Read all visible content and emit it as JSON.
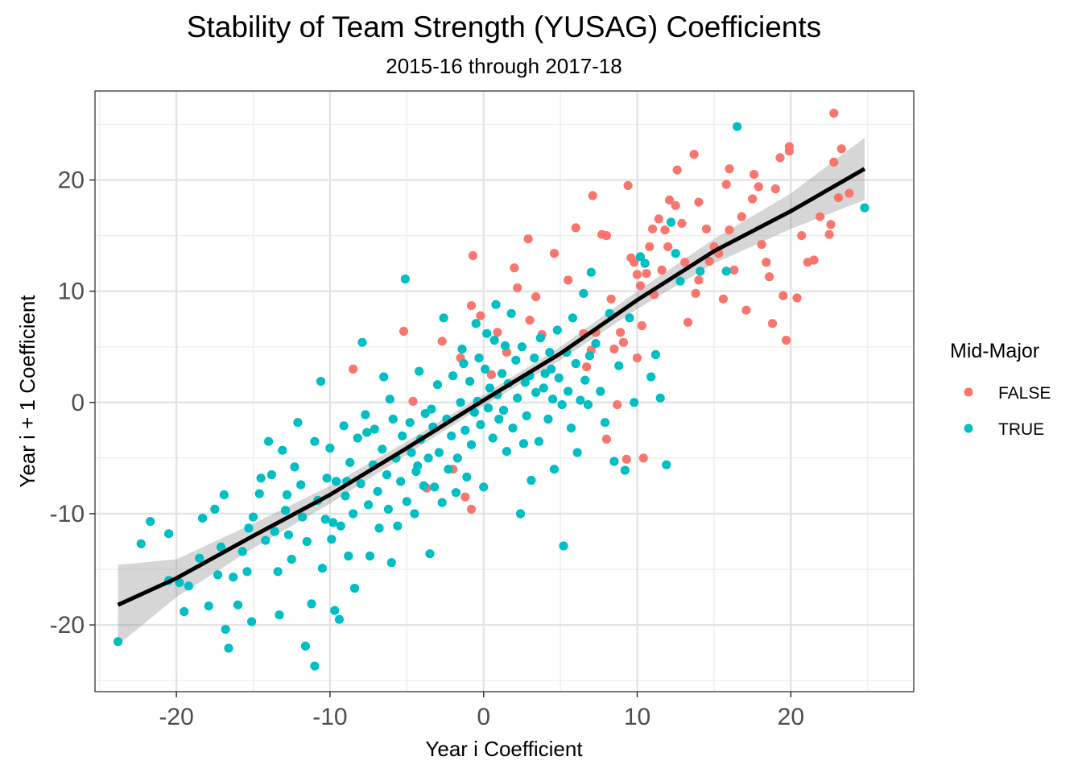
{
  "chart_data": {
    "type": "scatter",
    "title": "Stability of Team Strength (YUSAG) Coefficients",
    "subtitle": "2015-16 through 2017-18",
    "xlabel": "Year i Coefficient",
    "ylabel": "Year i + 1  Coefficient",
    "xlim": [
      -25.3,
      28.0
    ],
    "ylim": [
      -26.0,
      28.0
    ],
    "x_ticks": [
      -20,
      -10,
      0,
      10,
      20
    ],
    "y_ticks": [
      -20,
      -10,
      0,
      10,
      20
    ],
    "x_tick_labels": [
      "-20",
      "-10",
      "0",
      "10",
      "20"
    ],
    "y_tick_labels": [
      "-20",
      "-10",
      "0",
      "10",
      "20"
    ],
    "grid": true,
    "legend": {
      "title": "Mid-Major",
      "position": "right"
    },
    "series": [
      {
        "name": "FALSE",
        "color": "#F8766D",
        "points": [
          [
            -8.5,
            3.0
          ],
          [
            -5.2,
            6.4
          ],
          [
            -4.6,
            0.1
          ],
          [
            -3.7,
            -7.7
          ],
          [
            -2.7,
            5.5
          ],
          [
            -1.2,
            -8.5
          ],
          [
            -0.8,
            -9.6
          ],
          [
            -0.8,
            8.7
          ],
          [
            -0.7,
            13.2
          ],
          [
            -0.2,
            7.8
          ],
          [
            0.5,
            2.5
          ],
          [
            0.9,
            6.3
          ],
          [
            2.0,
            12.1
          ],
          [
            2.2,
            10.3
          ],
          [
            2.9,
            14.7
          ],
          [
            3.4,
            9.5
          ],
          [
            3.8,
            6.1
          ],
          [
            4.6,
            13.4
          ],
          [
            5.5,
            11.0
          ],
          [
            6.0,
            15.7
          ],
          [
            6.5,
            6.2
          ],
          [
            6.7,
            3.2
          ],
          [
            7.0,
            4.7
          ],
          [
            7.3,
            6.3
          ],
          [
            7.7,
            15.1
          ],
          [
            8.0,
            15.0
          ],
          [
            8.3,
            9.3
          ],
          [
            8.5,
            4.8
          ],
          [
            8.7,
            -0.2
          ],
          [
            8.9,
            6.3
          ],
          [
            9.1,
            5.4
          ],
          [
            9.3,
            -5.1
          ],
          [
            9.4,
            19.5
          ],
          [
            9.6,
            13.0
          ],
          [
            9.8,
            12.6
          ],
          [
            10.0,
            11.5
          ],
          [
            10.2,
            10.5
          ],
          [
            10.3,
            6.9
          ],
          [
            10.4,
            -5.0
          ],
          [
            10.6,
            11.6
          ],
          [
            10.8,
            14.0
          ],
          [
            11.0,
            15.6
          ],
          [
            11.1,
            9.7
          ],
          [
            11.4,
            16.5
          ],
          [
            11.6,
            11.9
          ],
          [
            11.8,
            15.5
          ],
          [
            12.1,
            18.2
          ],
          [
            12.5,
            17.7
          ],
          [
            12.6,
            20.9
          ],
          [
            12.9,
            16.1
          ],
          [
            13.1,
            12.6
          ],
          [
            13.3,
            7.2
          ],
          [
            13.7,
            22.3
          ],
          [
            13.8,
            9.8
          ],
          [
            14.0,
            11.0
          ],
          [
            14.5,
            15.6
          ],
          [
            14.7,
            12.7
          ],
          [
            15.0,
            14.0
          ],
          [
            15.3,
            13.4
          ],
          [
            15.6,
            9.3
          ],
          [
            15.8,
            19.6
          ],
          [
            16.0,
            15.5
          ],
          [
            16.3,
            11.9
          ],
          [
            16.8,
            16.7
          ],
          [
            17.1,
            8.3
          ],
          [
            17.5,
            18.3
          ],
          [
            17.9,
            19.4
          ],
          [
            18.1,
            14.2
          ],
          [
            18.4,
            12.6
          ],
          [
            18.6,
            11.3
          ],
          [
            18.8,
            7.1
          ],
          [
            19.0,
            19.2
          ],
          [
            19.3,
            22.0
          ],
          [
            19.5,
            9.6
          ],
          [
            19.7,
            5.6
          ],
          [
            19.9,
            22.6
          ],
          [
            20.4,
            9.4
          ],
          [
            20.7,
            15.0
          ],
          [
            21.1,
            12.6
          ],
          [
            21.5,
            12.8
          ],
          [
            21.9,
            16.7
          ],
          [
            22.5,
            15.1
          ],
          [
            22.6,
            16.0
          ],
          [
            22.8,
            21.6
          ],
          [
            22.8,
            26.0
          ],
          [
            23.1,
            18.4
          ],
          [
            23.3,
            22.8
          ],
          [
            23.8,
            18.8
          ],
          [
            1.5,
            4.5
          ],
          [
            3.0,
            7.4
          ],
          [
            -1.5,
            4.0
          ],
          [
            -2.0,
            -6.0
          ],
          [
            8.0,
            -3.3
          ],
          [
            10.0,
            4.0
          ],
          [
            12.0,
            14.0
          ],
          [
            14.0,
            18.0
          ],
          [
            16.0,
            21.0
          ],
          [
            17.6,
            20.5
          ],
          [
            19.9,
            23.0
          ],
          [
            7.1,
            18.6
          ]
        ]
      },
      {
        "name": "TRUE",
        "color": "#00BFC4",
        "points": [
          [
            -23.8,
            -21.5
          ],
          [
            -22.3,
            -12.7
          ],
          [
            -21.7,
            -10.7
          ],
          [
            -20.5,
            -11.8
          ],
          [
            -20.5,
            -16.0
          ],
          [
            -19.8,
            -16.2
          ],
          [
            -19.5,
            -18.8
          ],
          [
            -19.2,
            -16.5
          ],
          [
            -18.5,
            -14.0
          ],
          [
            -18.3,
            -10.4
          ],
          [
            -17.9,
            -18.3
          ],
          [
            -17.5,
            -9.6
          ],
          [
            -17.3,
            -15.5
          ],
          [
            -17.1,
            -13.0
          ],
          [
            -16.9,
            -8.3
          ],
          [
            -16.8,
            -20.4
          ],
          [
            -16.6,
            -22.1
          ],
          [
            -16.3,
            -15.7
          ],
          [
            -16.0,
            -18.2
          ],
          [
            -15.7,
            -13.4
          ],
          [
            -15.4,
            -15.2
          ],
          [
            -15.1,
            -19.7
          ],
          [
            -15.0,
            -10.3
          ],
          [
            -14.6,
            -8.2
          ],
          [
            -14.2,
            -12.4
          ],
          [
            -14.0,
            -3.5
          ],
          [
            -13.8,
            -6.5
          ],
          [
            -13.6,
            -11.6
          ],
          [
            -13.4,
            -15.2
          ],
          [
            -13.3,
            -19.1
          ],
          [
            -13.1,
            -4.3
          ],
          [
            -12.9,
            -9.7
          ],
          [
            -12.7,
            -11.9
          ],
          [
            -12.5,
            -14.1
          ],
          [
            -12.3,
            -5.8
          ],
          [
            -12.1,
            -1.8
          ],
          [
            -11.9,
            -7.4
          ],
          [
            -11.8,
            -10.3
          ],
          [
            -11.6,
            -21.9
          ],
          [
            -11.5,
            -12.5
          ],
          [
            -11.2,
            -18.1
          ],
          [
            -11.0,
            -23.7
          ],
          [
            -10.8,
            -8.8
          ],
          [
            -10.6,
            1.9
          ],
          [
            -10.5,
            -14.9
          ],
          [
            -10.3,
            -10.5
          ],
          [
            -10.2,
            -6.8
          ],
          [
            -10.0,
            -4.1
          ],
          [
            -9.9,
            -12.3
          ],
          [
            -9.7,
            -18.7
          ],
          [
            -9.6,
            -7.1
          ],
          [
            -9.4,
            -19.5
          ],
          [
            -9.3,
            -11.1
          ],
          [
            -9.1,
            -2.1
          ],
          [
            -9.0,
            -8.4
          ],
          [
            -8.8,
            -13.8
          ],
          [
            -8.7,
            -5.4
          ],
          [
            -8.5,
            -10.0
          ],
          [
            -8.4,
            -16.7
          ],
          [
            -8.2,
            -3.2
          ],
          [
            -8.0,
            -7.3
          ],
          [
            -7.9,
            5.4
          ],
          [
            -7.7,
            -1.1
          ],
          [
            -7.5,
            -9.2
          ],
          [
            -7.4,
            -13.8
          ],
          [
            -7.2,
            -5.6
          ],
          [
            -7.1,
            -2.4
          ],
          [
            -6.9,
            -8.0
          ],
          [
            -6.8,
            -11.3
          ],
          [
            -6.6,
            -4.2
          ],
          [
            -6.5,
            2.3
          ],
          [
            -6.3,
            -6.5
          ],
          [
            -6.2,
            -9.6
          ],
          [
            -6.0,
            -14.4
          ],
          [
            -5.9,
            -1.5
          ],
          [
            -5.7,
            -5.0
          ],
          [
            -5.6,
            -11.1
          ],
          [
            -5.4,
            -7.1
          ],
          [
            -5.3,
            -3.0
          ],
          [
            -5.1,
            11.1
          ],
          [
            -5.0,
            -8.9
          ],
          [
            -4.8,
            -1.8
          ],
          [
            -4.7,
            -4.5
          ],
          [
            -4.5,
            -10.0
          ],
          [
            -4.4,
            -6.2
          ],
          [
            -4.2,
            2.8
          ],
          [
            -4.1,
            -3.3
          ],
          [
            -3.9,
            -7.5
          ],
          [
            -3.8,
            -1.0
          ],
          [
            -3.6,
            -5.0
          ],
          [
            -3.5,
            -13.6
          ],
          [
            -3.3,
            -2.2
          ],
          [
            -3.2,
            -7.6
          ],
          [
            -3.0,
            1.6
          ],
          [
            -2.9,
            -4.5
          ],
          [
            -2.7,
            -9.0
          ],
          [
            -2.6,
            7.6
          ],
          [
            -2.4,
            -1.5
          ],
          [
            -2.3,
            -6.0
          ],
          [
            -2.1,
            -3.0
          ],
          [
            -2.0,
            2.4
          ],
          [
            -1.8,
            -8.1
          ],
          [
            -1.7,
            -5.0
          ],
          [
            -1.5,
            0.0
          ],
          [
            -1.4,
            4.8
          ],
          [
            -1.2,
            -2.5
          ],
          [
            -1.1,
            -6.7
          ],
          [
            -0.9,
            1.9
          ],
          [
            -0.8,
            -3.8
          ],
          [
            -0.6,
            -0.9
          ],
          [
            -0.5,
            7.1
          ],
          [
            -0.3,
            4.0
          ],
          [
            -0.2,
            -2.0
          ],
          [
            0.0,
            -7.6
          ],
          [
            0.1,
            3.0
          ],
          [
            0.3,
            -0.5
          ],
          [
            0.4,
            1.3
          ],
          [
            0.6,
            -3.2
          ],
          [
            0.7,
            5.6
          ],
          [
            0.9,
            0.7
          ],
          [
            1.0,
            -1.5
          ],
          [
            1.2,
            2.6
          ],
          [
            1.3,
            -0.7
          ],
          [
            1.5,
            -4.4
          ],
          [
            1.6,
            1.7
          ],
          [
            1.8,
            8.0
          ],
          [
            1.9,
            -2.3
          ],
          [
            2.1,
            3.8
          ],
          [
            2.2,
            0.4
          ],
          [
            2.4,
            -10.0
          ],
          [
            2.5,
            5.0
          ],
          [
            2.7,
            1.8
          ],
          [
            2.8,
            -1.2
          ],
          [
            3.0,
            2.4
          ],
          [
            3.1,
            -7.0
          ],
          [
            3.3,
            4.0
          ],
          [
            3.4,
            0.9
          ],
          [
            3.6,
            -3.5
          ],
          [
            3.7,
            5.8
          ],
          [
            3.9,
            1.3
          ],
          [
            4.0,
            2.6
          ],
          [
            4.2,
            -1.5
          ],
          [
            4.3,
            4.5
          ],
          [
            4.5,
            0.3
          ],
          [
            4.6,
            -6.0
          ],
          [
            4.8,
            6.5
          ],
          [
            4.9,
            2.2
          ],
          [
            5.1,
            -0.2
          ],
          [
            5.2,
            -12.9
          ],
          [
            5.4,
            4.5
          ],
          [
            5.5,
            1.0
          ],
          [
            5.7,
            -2.3
          ],
          [
            5.8,
            7.6
          ],
          [
            6.0,
            3.5
          ],
          [
            6.1,
            -4.5
          ],
          [
            6.3,
            0.2
          ],
          [
            6.5,
            9.8
          ],
          [
            6.6,
            2.0
          ],
          [
            6.8,
            -0.2
          ],
          [
            7.0,
            11.7
          ],
          [
            7.3,
            5.3
          ],
          [
            7.6,
            1.0
          ],
          [
            7.9,
            -1.8
          ],
          [
            8.2,
            8.0
          ],
          [
            8.5,
            -5.3
          ],
          [
            8.8,
            3.3
          ],
          [
            9.2,
            -6.1
          ],
          [
            9.5,
            7.6
          ],
          [
            9.8,
            0.0
          ],
          [
            10.2,
            13.1
          ],
          [
            10.5,
            12.5
          ],
          [
            10.9,
            2.3
          ],
          [
            11.2,
            4.3
          ],
          [
            11.5,
            0.4
          ],
          [
            11.9,
            -5.6
          ],
          [
            12.2,
            16.2
          ],
          [
            12.5,
            13.4
          ],
          [
            12.8,
            10.9
          ],
          [
            14.1,
            11.8
          ],
          [
            15.8,
            11.8
          ],
          [
            16.5,
            24.8
          ],
          [
            24.8,
            17.5
          ],
          [
            -1.3,
            3.5
          ],
          [
            0.8,
            8.8
          ],
          [
            -0.4,
            0.1
          ],
          [
            1.4,
            5.1
          ],
          [
            2.6,
            -3.7
          ],
          [
            -4.3,
            -5.7
          ],
          [
            -6.1,
            0.3
          ],
          [
            -7.6,
            -2.7
          ],
          [
            -9.8,
            -10.8
          ],
          [
            -11.0,
            -3.5
          ],
          [
            -12.8,
            -8.3
          ],
          [
            -14.5,
            -6.8
          ],
          [
            -15.3,
            -11.3
          ],
          [
            -8.9,
            -7.1
          ],
          [
            -3.4,
            -0.6
          ],
          [
            0.2,
            6.2
          ],
          [
            4.4,
            3.0
          ],
          [
            6.9,
            4.2
          ]
        ]
      }
    ],
    "trend": {
      "x": [
        -23.8,
        -20,
        -15,
        -10,
        -5,
        0,
        5,
        10,
        15,
        20,
        24.8
      ],
      "y": [
        -18.2,
        -15.8,
        -12.0,
        -8.3,
        -4.1,
        0.2,
        4.4,
        9.2,
        13.6,
        17.2,
        21.0
      ],
      "ci_lower": [
        -21.8,
        -17.5,
        -13.1,
        -9.1,
        -4.7,
        -0.3,
        3.8,
        8.4,
        12.5,
        15.6,
        18.2
      ],
      "ci_upper": [
        -14.6,
        -14.1,
        -10.9,
        -7.5,
        -3.5,
        0.7,
        5.0,
        10.0,
        14.7,
        18.8,
        23.8
      ]
    }
  }
}
